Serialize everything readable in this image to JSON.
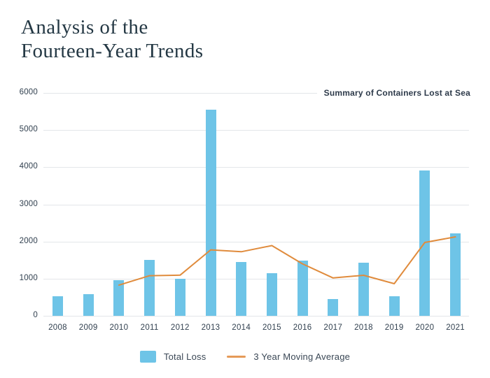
{
  "page": {
    "title_line1": "Analysis of the",
    "title_line2": "Fourteen-Year Trends"
  },
  "colors": {
    "bar": "#6ec4e7",
    "line": "#e08b3c",
    "legend_line": "#e59a58",
    "grid": "#e3e6e9",
    "axis_text": "#31404f",
    "title_text": "#243844",
    "subtitle_text": "#2d3a4a"
  },
  "chart_data": {
    "type": "bar",
    "title": "Summary of Containers Lost at Sea",
    "xlabel": "",
    "ylabel": "",
    "categories": [
      "2008",
      "2009",
      "2010",
      "2011",
      "2012",
      "2013",
      "2014",
      "2015",
      "2016",
      "2017",
      "2018",
      "2019",
      "2020",
      "2021"
    ],
    "series": [
      {
        "name": "Total Loss",
        "type": "bar",
        "color": "#6ec4e7",
        "values": [
          520,
          580,
          965,
          1500,
          1000,
          5550,
          1450,
          1150,
          1480,
          450,
          1430,
          520,
          3920,
          2220
        ]
      },
      {
        "name": "3 Year Moving Average",
        "type": "line",
        "color": "#e08b3c",
        "values": [
          null,
          null,
          825,
          1080,
          1095,
          1775,
          1725,
          1890,
          1400,
          1020,
          1090,
          865,
          1975,
          2125
        ]
      }
    ],
    "ylim": [
      0,
      6000
    ],
    "yticks": [
      0,
      1000,
      2000,
      3000,
      4000,
      5000,
      6000
    ],
    "grid": "horizontal",
    "legend_position": "bottom"
  }
}
